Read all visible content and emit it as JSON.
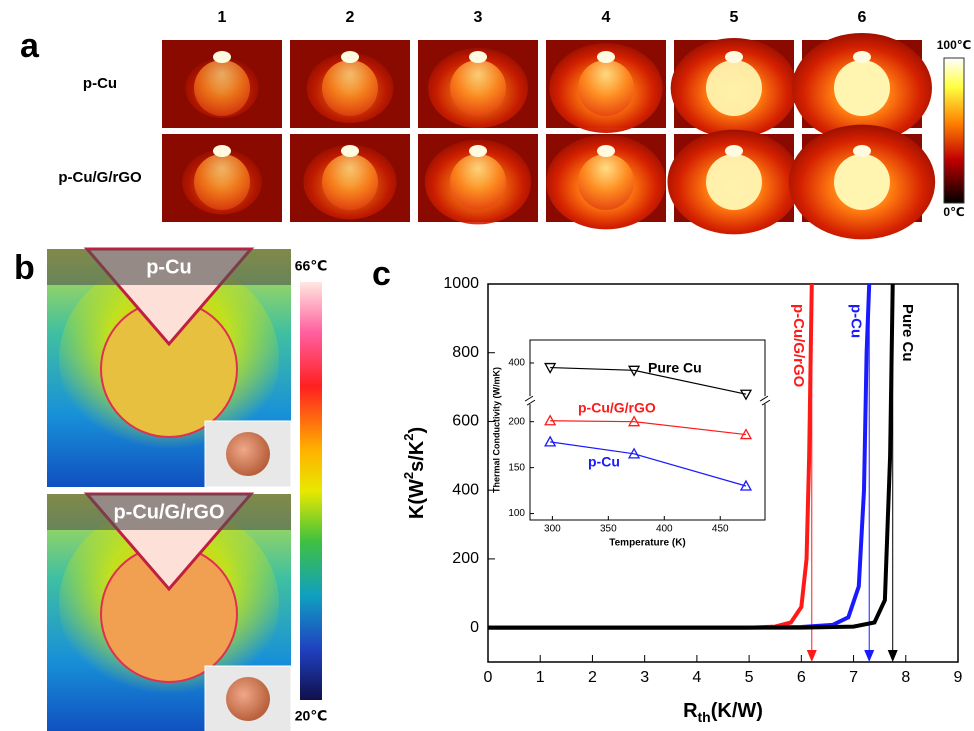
{
  "panel_a": {
    "letter": "a",
    "columns": [
      "1",
      "2",
      "3",
      "4",
      "5",
      "6"
    ],
    "rows": [
      "p-Cu",
      "p-Cu/G/rGO"
    ],
    "colorbar": {
      "max_label": "100℃",
      "min_label": "0℃"
    }
  },
  "panel_b": {
    "letter": "b",
    "images": [
      "p-Cu",
      "p-Cu/G/rGO"
    ],
    "colorbar": {
      "max_label": "66℃",
      "min_label": "20℃"
    }
  },
  "panel_c": {
    "letter": "c"
  },
  "chart_data": [
    {
      "type": "line",
      "x_label": [
        "R",
        "th",
        "(K/W)"
      ],
      "y_label": [
        "K(W",
        "2",
        "s/K",
        "2",
        ")"
      ],
      "xlim": [
        0,
        9
      ],
      "xticks": [
        0,
        1,
        2,
        3,
        4,
        5,
        6,
        7,
        8,
        9
      ],
      "ylim": [
        -100,
        1000
      ],
      "yticks": [
        0,
        200,
        400,
        600,
        800,
        1000
      ],
      "series": [
        {
          "name": "p-Cu/G/rGO",
          "color": "#ff1a1a",
          "arrow_x": 6.2,
          "x": [
            0,
            5,
            5.5,
            5.8,
            6.0,
            6.1,
            6.15,
            6.2
          ],
          "values": [
            0,
            0,
            3,
            15,
            60,
            200,
            500,
            1000
          ]
        },
        {
          "name": "p-Cu",
          "color": "#1a1aff",
          "arrow_x": 7.3,
          "x": [
            0,
            5,
            6,
            6.6,
            6.9,
            7.1,
            7.2,
            7.25,
            7.3
          ],
          "values": [
            0,
            0,
            2,
            8,
            30,
            120,
            400,
            800,
            1000
          ]
        },
        {
          "name": "Pure Cu",
          "color": "#000000",
          "arrow_x": 7.75,
          "x": [
            0,
            6,
            7,
            7.4,
            7.6,
            7.7,
            7.75
          ],
          "values": [
            0,
            0,
            3,
            15,
            80,
            500,
            1000
          ]
        }
      ]
    },
    {
      "type": "line",
      "x_label": "Temperature (K)",
      "y_label": "Thermal Conductivity (W/mK)",
      "xlim": [
        280,
        490
      ],
      "xticks": [
        300,
        350,
        400,
        450
      ],
      "ylim": [
        93,
        425
      ],
      "yticks": [
        100,
        150,
        200,
        400
      ],
      "axis_break": [
        218,
        365
      ],
      "series": [
        {
          "name": "Pure Cu",
          "color": "#000000",
          "marker": "triangle-down",
          "x": [
            298,
            373,
            473
          ],
          "values": [
            395,
            392,
            366
          ]
        },
        {
          "name": "p-Cu/G/rGO",
          "color": "#ff1a1a",
          "marker": "triangle-up",
          "x": [
            298,
            373,
            473
          ],
          "values": [
            201,
            200,
            186
          ]
        },
        {
          "name": "p-Cu",
          "color": "#1a1aff",
          "marker": "triangle-up",
          "x": [
            298,
            373,
            473
          ],
          "values": [
            178,
            165,
            130
          ]
        }
      ]
    }
  ]
}
